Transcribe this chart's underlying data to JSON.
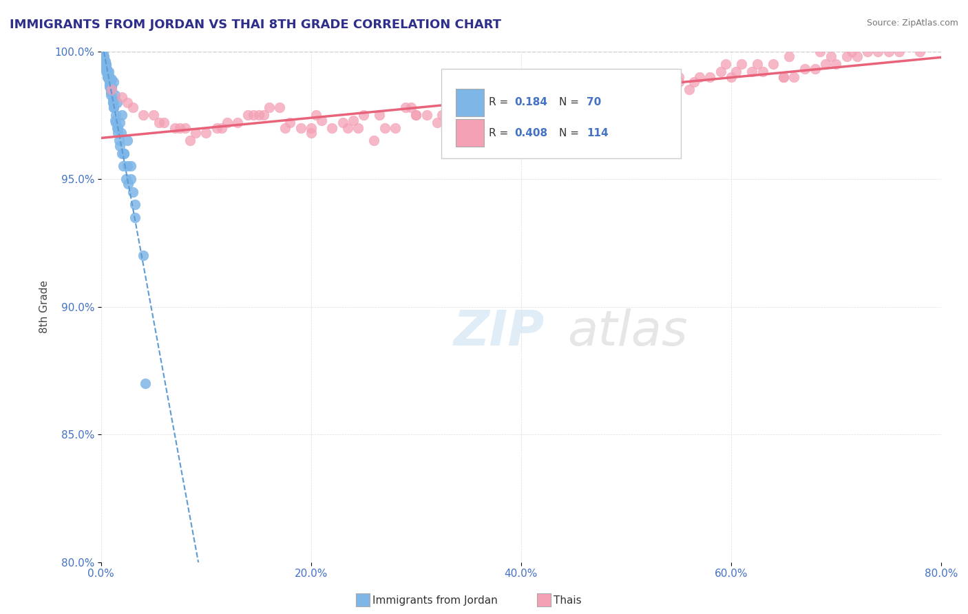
{
  "title": "IMMIGRANTS FROM JORDAN VS THAI 8TH GRADE CORRELATION CHART",
  "source": "Source: ZipAtlas.com",
  "ylabel": "8th Grade",
  "xlim": [
    0.0,
    80.0
  ],
  "ylim": [
    80.0,
    100.0
  ],
  "xticks": [
    0.0,
    20.0,
    40.0,
    60.0,
    80.0
  ],
  "yticks": [
    80.0,
    85.0,
    90.0,
    95.0,
    100.0
  ],
  "blue_R": 0.184,
  "blue_N": 70,
  "pink_R": 0.408,
  "pink_N": 114,
  "blue_color": "#7EB6E8",
  "pink_color": "#F4A0B5",
  "blue_line_color": "#5B9BD5",
  "pink_line_color": "#E8637A",
  "ref_line_color": "#CCCCCC",
  "title_color": "#2E2E8B",
  "axis_label_color": "#4472C4",
  "source_color": "#777777",
  "jordan_points_x": [
    0.2,
    0.3,
    0.3,
    0.4,
    0.4,
    0.5,
    0.5,
    0.5,
    0.6,
    0.6,
    0.6,
    0.7,
    0.7,
    0.7,
    0.8,
    0.8,
    0.8,
    0.9,
    0.9,
    0.9,
    1.0,
    1.0,
    1.0,
    1.1,
    1.1,
    1.2,
    1.2,
    1.3,
    1.4,
    1.5,
    1.6,
    1.7,
    1.8,
    1.9,
    2.0,
    2.1,
    2.2,
    2.4,
    2.5,
    2.6,
    2.8,
    3.0,
    3.2,
    0.2,
    0.3,
    0.4,
    0.5,
    0.6,
    0.7,
    0.8,
    0.9,
    1.0,
    1.1,
    1.2,
    1.3,
    1.4,
    1.5,
    1.6,
    1.8,
    2.0,
    2.2,
    2.5,
    2.8,
    3.2,
    4.0,
    4.2,
    0.3,
    0.4,
    0.5,
    0.6
  ],
  "jordan_points_y": [
    99.9,
    99.8,
    99.7,
    99.6,
    99.5,
    99.5,
    99.4,
    99.3,
    99.2,
    99.1,
    99.0,
    99.2,
    99.0,
    99.0,
    99.0,
    98.8,
    98.7,
    98.5,
    98.4,
    98.3,
    98.9,
    98.6,
    98.5,
    98.1,
    98.0,
    98.8,
    97.8,
    98.3,
    97.5,
    98.0,
    97.0,
    96.5,
    97.2,
    96.8,
    97.5,
    95.5,
    96.0,
    95.0,
    96.5,
    94.8,
    95.5,
    94.5,
    93.5,
    99.8,
    99.6,
    99.4,
    99.2,
    99.0,
    98.9,
    98.6,
    98.4,
    98.6,
    98.0,
    97.8,
    97.3,
    97.2,
    97.0,
    96.8,
    96.3,
    96.0,
    96.0,
    95.5,
    95.0,
    94.0,
    92.0,
    87.0,
    99.7,
    99.5,
    99.3,
    99.1
  ],
  "thai_points_x": [
    1.0,
    2.0,
    3.0,
    4.0,
    5.0,
    6.0,
    7.0,
    8.0,
    9.0,
    10.0,
    11.0,
    12.0,
    13.0,
    14.0,
    15.0,
    16.0,
    17.0,
    18.0,
    19.0,
    20.0,
    21.0,
    22.0,
    23.0,
    24.0,
    25.0,
    26.0,
    27.0,
    28.0,
    29.0,
    30.0,
    31.0,
    32.0,
    33.0,
    34.0,
    35.0,
    36.0,
    37.0,
    38.0,
    39.0,
    40.0,
    41.0,
    42.0,
    43.0,
    44.0,
    45.0,
    46.0,
    47.0,
    48.0,
    49.0,
    50.0,
    51.0,
    52.0,
    53.0,
    54.0,
    55.0,
    56.0,
    57.0,
    58.0,
    59.0,
    60.0,
    61.0,
    62.0,
    63.0,
    64.0,
    65.0,
    66.0,
    67.0,
    68.0,
    69.0,
    70.0,
    71.0,
    72.0,
    73.0,
    74.0,
    75.0,
    76.0,
    2.5,
    5.5,
    8.5,
    11.5,
    14.5,
    17.5,
    20.5,
    23.5,
    26.5,
    29.5,
    32.5,
    35.5,
    38.5,
    41.5,
    44.5,
    47.5,
    50.5,
    53.5,
    56.5,
    59.5,
    62.5,
    65.5,
    68.5,
    71.5,
    7.5,
    15.5,
    24.5,
    33.5,
    42.5,
    51.5,
    60.5,
    69.5,
    20.0,
    45.0,
    65.0,
    30.0,
    55.0,
    78.0
  ],
  "thai_points_y": [
    98.5,
    98.2,
    97.8,
    97.5,
    97.5,
    97.2,
    97.0,
    97.0,
    96.8,
    96.8,
    97.0,
    97.2,
    97.2,
    97.5,
    97.5,
    97.8,
    97.8,
    97.2,
    97.0,
    96.8,
    97.3,
    97.0,
    97.2,
    97.3,
    97.5,
    96.5,
    97.0,
    97.0,
    97.8,
    97.5,
    97.5,
    97.2,
    97.8,
    97.8,
    97.5,
    97.3,
    97.8,
    97.6,
    98.0,
    97.9,
    97.8,
    98.0,
    98.0,
    97.8,
    98.3,
    97.5,
    98.0,
    97.5,
    98.5,
    98.5,
    98.5,
    98.8,
    99.0,
    98.8,
    98.8,
    98.5,
    99.0,
    99.0,
    99.2,
    99.0,
    99.5,
    99.2,
    99.2,
    99.5,
    99.0,
    99.0,
    99.3,
    99.3,
    99.5,
    99.5,
    99.8,
    99.8,
    100.0,
    100.0,
    100.0,
    100.0,
    98.0,
    97.2,
    96.5,
    97.0,
    97.5,
    97.0,
    97.5,
    97.0,
    97.5,
    97.8,
    97.5,
    97.5,
    97.5,
    97.8,
    97.8,
    98.2,
    98.8,
    99.0,
    98.8,
    99.5,
    99.5,
    99.8,
    100.0,
    100.0,
    97.0,
    97.5,
    97.0,
    97.8,
    98.0,
    98.8,
    99.2,
    99.8,
    97.0,
    98.0,
    99.0,
    97.5,
    99.0,
    100.0
  ]
}
